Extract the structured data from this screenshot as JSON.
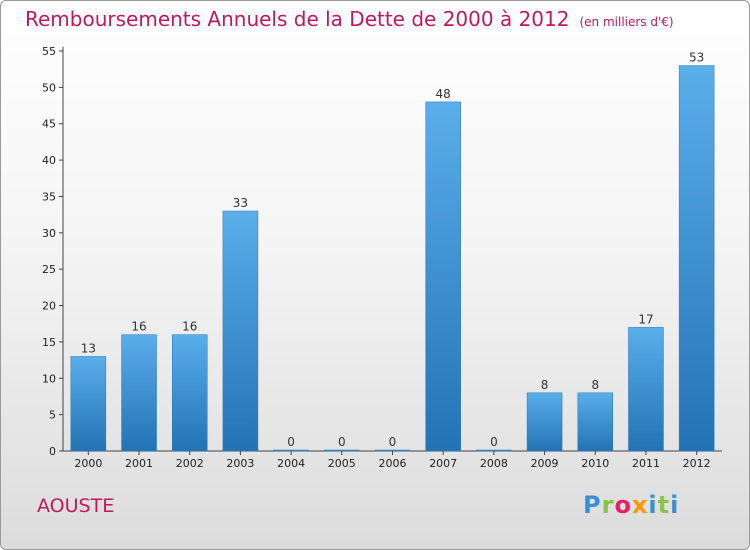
{
  "title": "Remboursements Annuels de la Dette de 2000 à 2012",
  "subtitle": "(en milliers d'€)",
  "town": "AOUSTE",
  "logo": {
    "letters": [
      "P",
      "r",
      "o",
      "x",
      "i",
      "t",
      "i"
    ],
    "colors": [
      "#3a8fd6",
      "#8bc34a",
      "#e91e63",
      "#ff9800",
      "#3a8fd6",
      "#8bc34a",
      "#3a8fd6"
    ]
  },
  "colors": {
    "bar": "#3d94d6",
    "bar_light": "#5aaeea",
    "bar_dark": "#2273b4",
    "title": "#c2185b"
  },
  "chart_data": {
    "type": "bar",
    "categories": [
      "2000",
      "2001",
      "2002",
      "2003",
      "2004",
      "2005",
      "2006",
      "2007",
      "2008",
      "2009",
      "2010",
      "2011",
      "2012"
    ],
    "values": [
      13,
      16,
      16,
      33,
      0,
      0,
      0,
      48,
      0,
      8,
      8,
      17,
      53
    ],
    "title": "Remboursements Annuels de la Dette de 2000 à 2012",
    "subtitle": "(en milliers d'€)",
    "xlabel": "",
    "ylabel": "",
    "ylim": [
      0,
      55
    ],
    "yticks": [
      0,
      5,
      10,
      15,
      20,
      25,
      30,
      35,
      40,
      45,
      50,
      55
    ],
    "grid": false
  }
}
